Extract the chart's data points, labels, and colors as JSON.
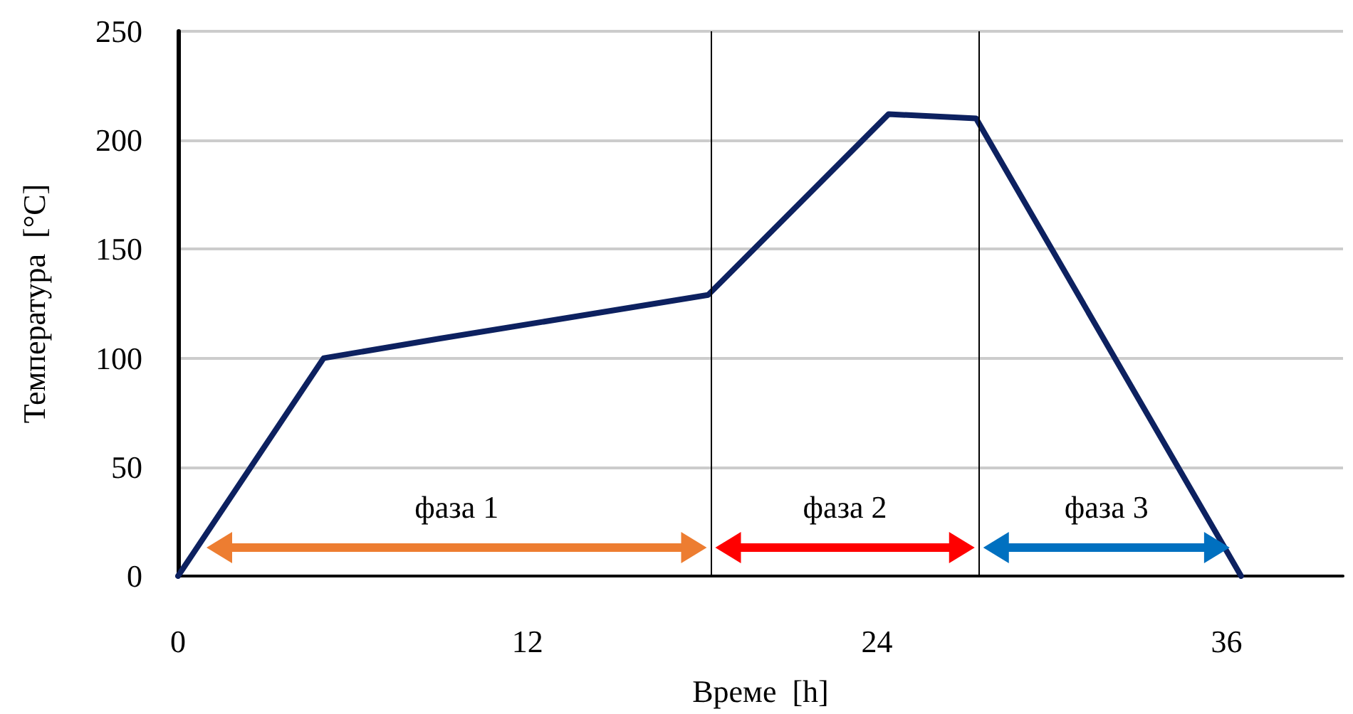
{
  "chart_data": {
    "type": "line",
    "xlabel": "Време  [h]",
    "ylabel": "Температура  [°C]",
    "x": [
      0,
      5,
      9,
      18.2,
      24.4,
      27.4,
      36.5
    ],
    "series": [
      {
        "color": "#0d2160",
        "values": [
          0,
          100,
          109,
          129,
          212,
          210,
          0
        ]
      }
    ],
    "xlim": [
      0,
      40
    ],
    "xticks": [
      0,
      12,
      24,
      36
    ],
    "ylim": [
      0,
      250
    ],
    "yticks": [
      0,
      50,
      100,
      150,
      200,
      250
    ],
    "grid": "y",
    "marker": "none",
    "line_style": "solid",
    "ref_lines": [
      {
        "axis": "x",
        "value": 18.3,
        "color": "#000000"
      },
      {
        "axis": "x",
        "value": 27.5,
        "color": "#000000"
      }
    ],
    "annotations": [
      "фаза 1",
      "фаза 2",
      "фаза 3"
    ]
  }
}
